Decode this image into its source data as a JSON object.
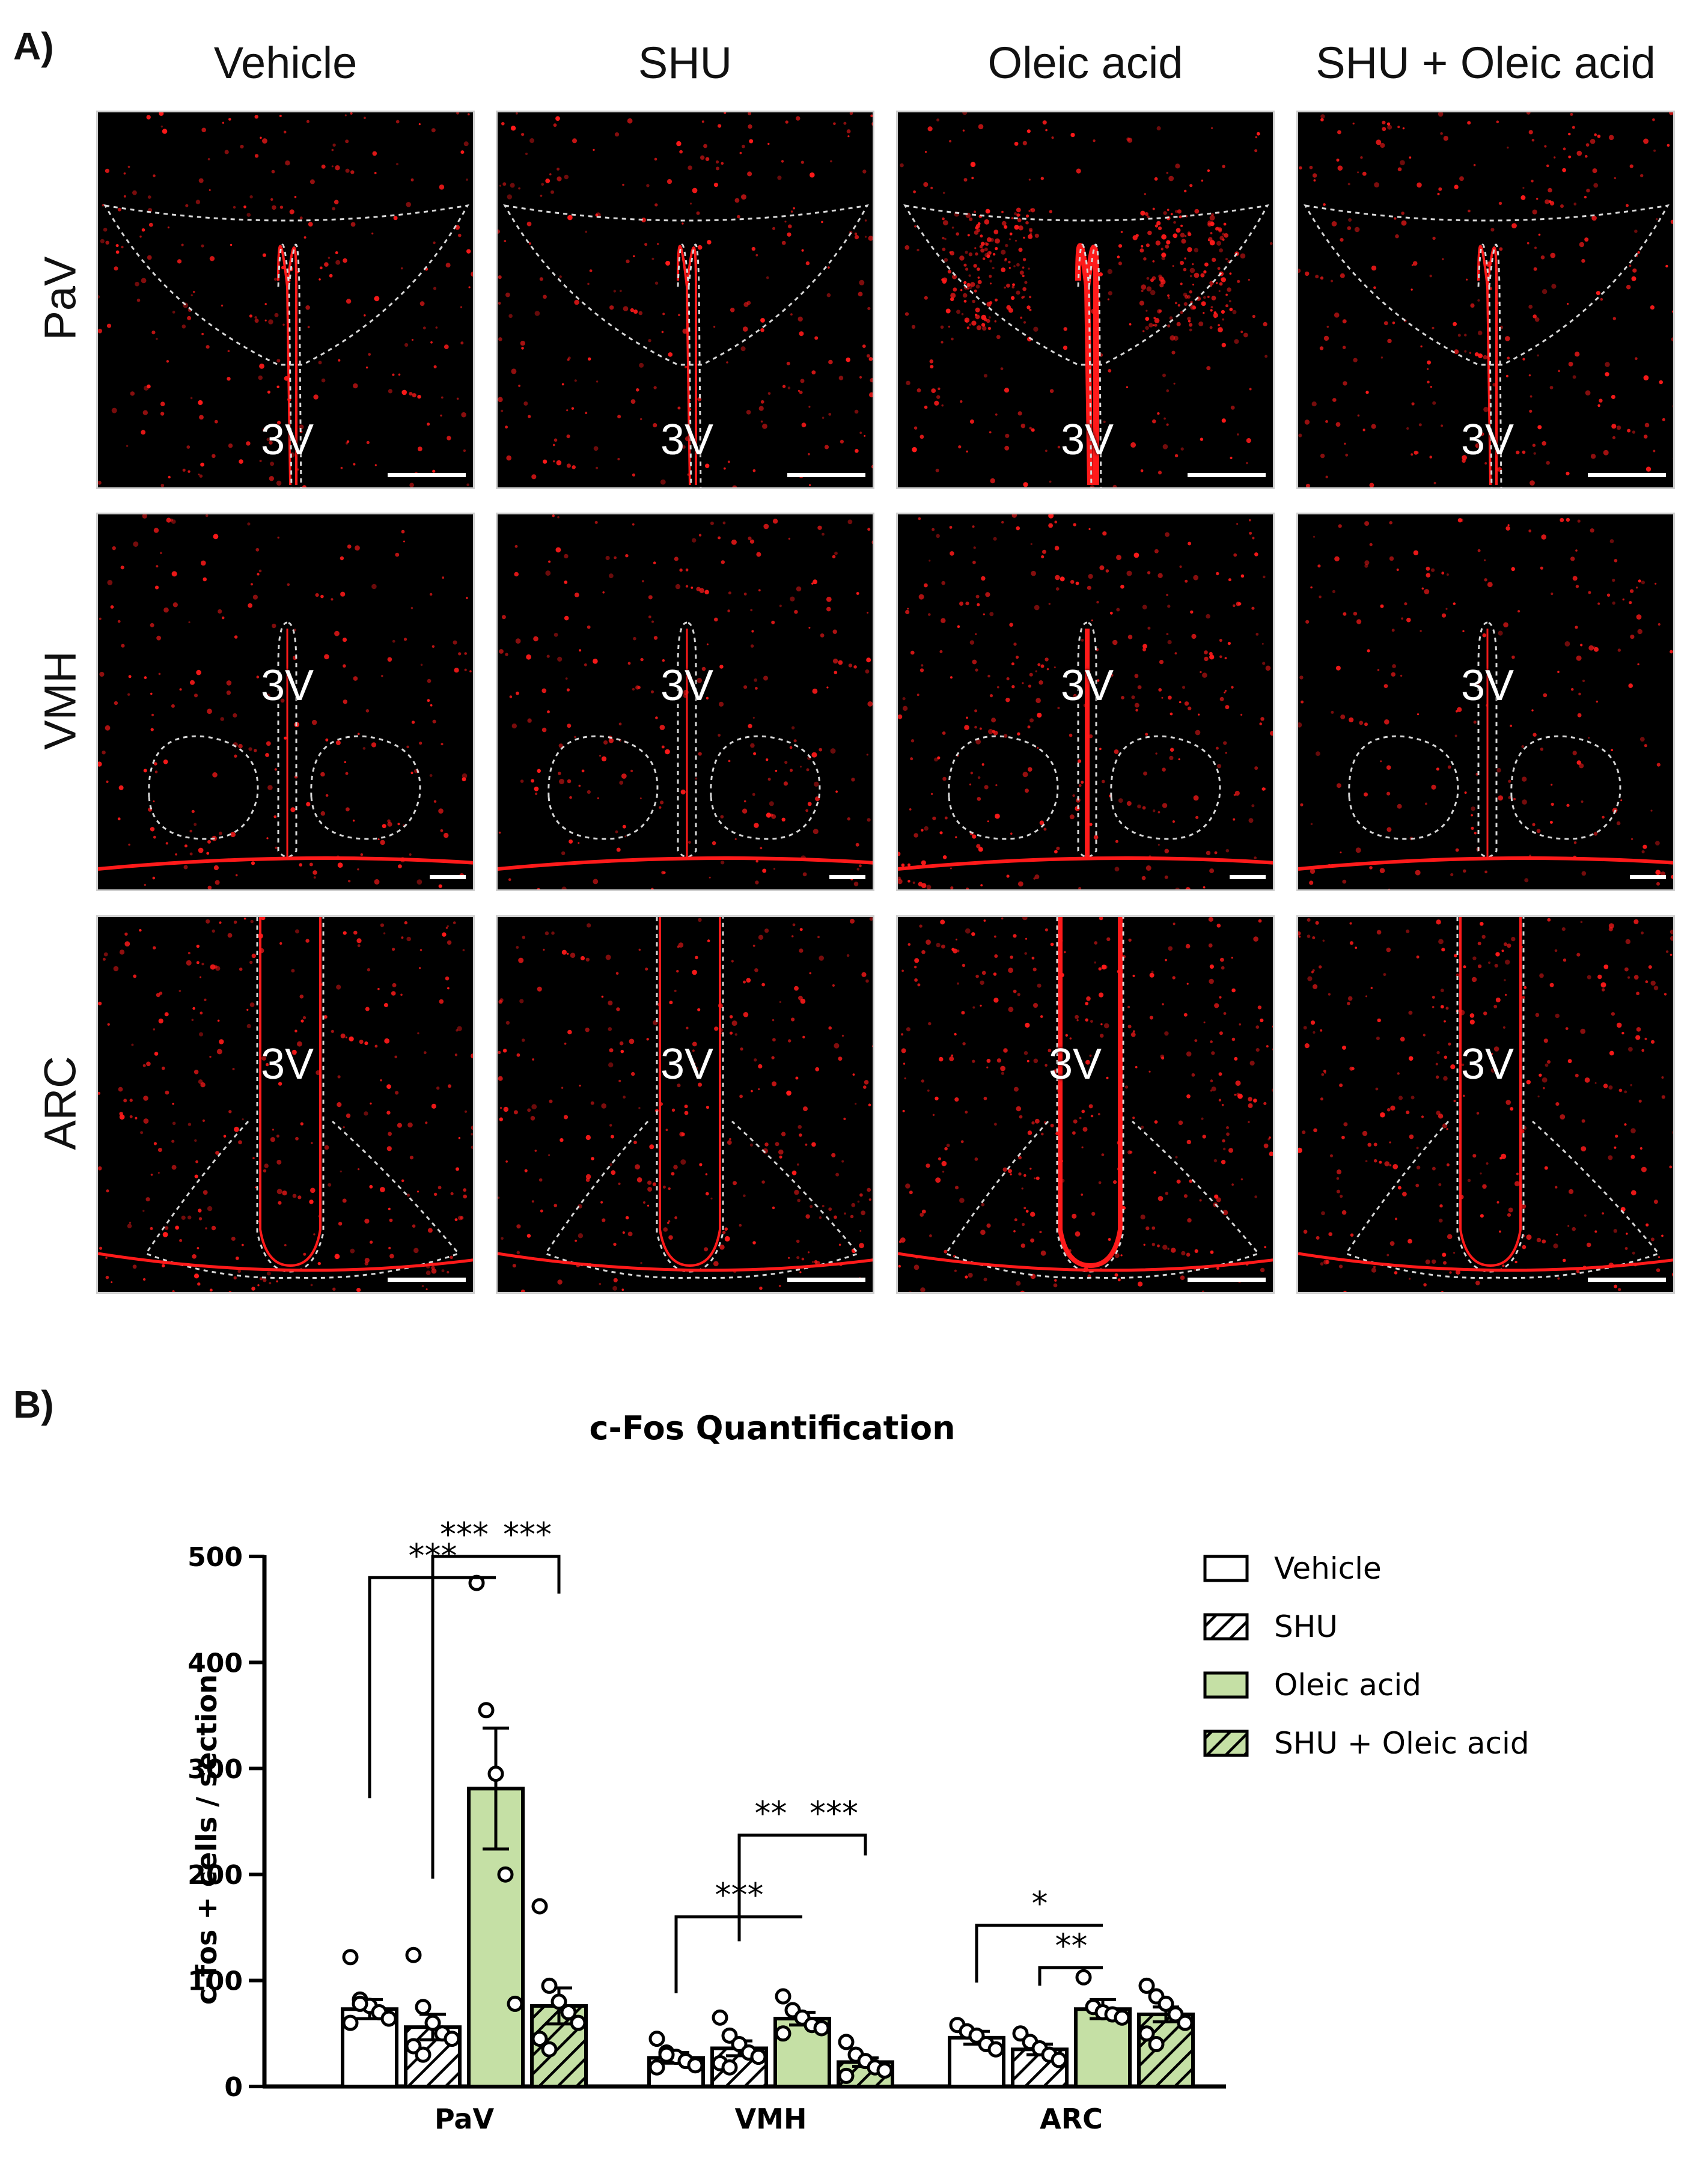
{
  "panel_a": {
    "letter": "A)",
    "columns": [
      "Vehicle",
      "SHU",
      "Oleic acid",
      "SHU + Oleic acid"
    ],
    "rows": [
      "PaV",
      "VMH",
      "ARC"
    ],
    "ventricle_label": "3V",
    "signal_color": "#ff1a1a"
  },
  "panel_b": {
    "letter": "B)"
  },
  "chart_data": {
    "type": "bar",
    "title": "c-Fos Quantification",
    "ylabel": "c-fos + cells / section",
    "xlabel": "",
    "ylim": [
      0,
      500
    ],
    "yticks": [
      0,
      100,
      200,
      300,
      400,
      500
    ],
    "categories": [
      "PaV",
      "VMH",
      "ARC"
    ],
    "series": [
      {
        "name": "Vehicle",
        "values": [
          73,
          27,
          46
        ],
        "sem": [
          9,
          5,
          6
        ],
        "fill": "#ffffff",
        "hatch": false,
        "points": [
          [
            122,
            82,
            76,
            70,
            64,
            60,
            78
          ],
          [
            45,
            32,
            28,
            24,
            20,
            18,
            30
          ],
          [
            58,
            52,
            48,
            40,
            35
          ]
        ]
      },
      {
        "name": "SHU",
        "values": [
          56,
          36,
          35
        ],
        "sem": [
          12,
          7,
          5
        ],
        "fill": "#ffffff",
        "hatch": true,
        "points": [
          [
            124,
            75,
            60,
            50,
            45,
            38,
            30
          ],
          [
            65,
            48,
            40,
            32,
            28,
            22,
            18
          ],
          [
            50,
            42,
            36,
            30,
            25
          ]
        ]
      },
      {
        "name": "Oleic acid",
        "values": [
          281,
          64,
          73
        ],
        "sem": [
          57,
          6,
          9
        ],
        "fill": "#c5e0a5",
        "hatch": false,
        "points": [
          [
            475,
            355,
            295,
            200,
            78
          ],
          [
            85,
            72,
            65,
            58,
            55,
            50
          ],
          [
            103,
            75,
            70,
            68,
            65
          ]
        ]
      },
      {
        "name": "SHU + Oleic acid",
        "values": [
          76,
          23,
          68
        ],
        "sem": [
          17,
          4,
          7
        ],
        "fill": "#c5e0a5",
        "hatch": true,
        "points": [
          [
            170,
            95,
            80,
            70,
            60,
            45,
            35
          ],
          [
            42,
            30,
            24,
            18,
            15,
            10
          ],
          [
            95,
            85,
            78,
            68,
            60,
            50,
            40
          ]
        ]
      }
    ],
    "significance": [
      {
        "group": "PaV",
        "from": 1,
        "to": 2,
        "label": "***",
        "left_y": 196,
        "right_y": 500
      },
      {
        "group": "PaV",
        "from": 2,
        "to": 3,
        "label": "***",
        "left_y": 500,
        "right_y": 465
      },
      {
        "group": "PaV",
        "from": 0,
        "to": 2,
        "label": "***",
        "left_y": 272,
        "right_y": 480
      },
      {
        "group": "VMH",
        "from": 1,
        "to": 2,
        "label": "**",
        "left_y": 137,
        "right_y": 237
      },
      {
        "group": "VMH",
        "from": 2,
        "to": 3,
        "label": "***",
        "left_y": 237,
        "right_y": 218
      },
      {
        "group": "VMH",
        "from": 0,
        "to": 2,
        "label": "***",
        "left_y": 88,
        "right_y": 160
      },
      {
        "group": "ARC",
        "from": 0,
        "to": 2,
        "label": "*",
        "left_y": 98,
        "right_y": 152
      },
      {
        "group": "ARC",
        "from": 1,
        "to": 2,
        "label": "**",
        "left_y": 95,
        "right_y": 112
      }
    ],
    "legend_position": "right"
  }
}
